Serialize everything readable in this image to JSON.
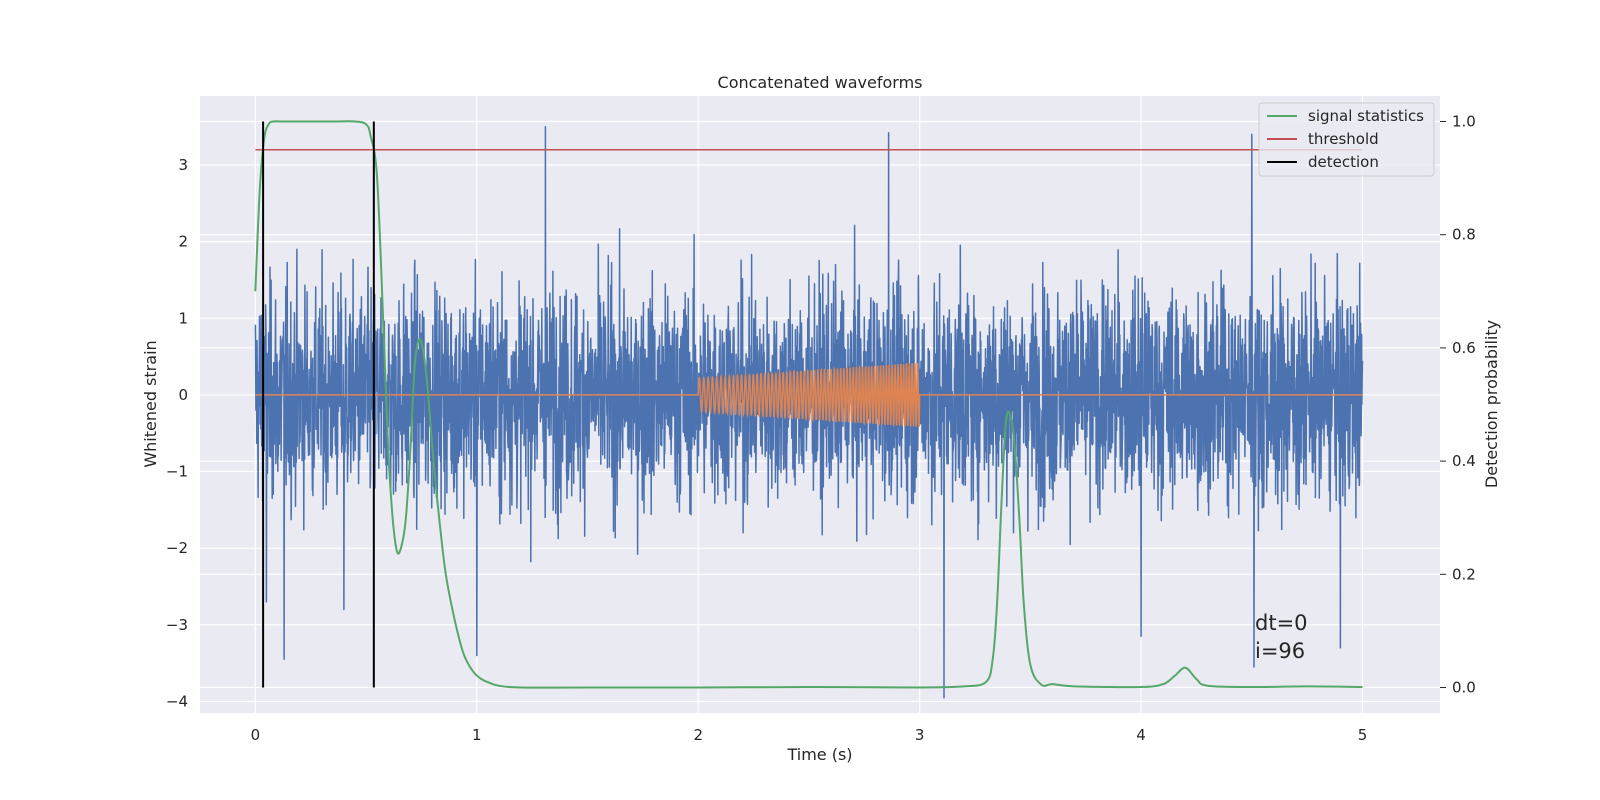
{
  "chart_data": {
    "type": "line",
    "title": "Concatenated waveforms",
    "xlabel": "Time (s)",
    "ylabel": "Whitened strain",
    "y2label": "Detection probability",
    "xlim": [
      -0.25,
      5.35
    ],
    "ylim": [
      -4.15,
      3.9
    ],
    "y2lim": [
      -0.045,
      1.045
    ],
    "xticks": [
      0,
      1,
      2,
      3,
      4,
      5
    ],
    "xtick_labels": [
      "0",
      "1",
      "2",
      "3",
      "4",
      "5"
    ],
    "yticks": [
      -4,
      -3,
      -2,
      -1,
      0,
      1,
      2,
      3
    ],
    "ytick_labels": [
      "−4",
      "−3",
      "−2",
      "−1",
      "0",
      "1",
      "2",
      "3"
    ],
    "y2ticks": [
      0.0,
      0.2,
      0.4,
      0.6,
      0.8,
      1.0
    ],
    "y2tick_labels": [
      "0.0",
      "0.2",
      "0.4",
      "0.6",
      "0.8",
      "1.0"
    ],
    "grid": true,
    "legend_position": "top-right",
    "legend": [
      {
        "label": "signal statistics",
        "color": "#55a868"
      },
      {
        "label": "threshold",
        "color": "#c44e52"
      },
      {
        "label": "detection",
        "color": "#000000"
      }
    ],
    "annotations": [
      "dt=0",
      "i=96"
    ],
    "series": [
      {
        "kind": "whitened_strain_noise",
        "axis": "left",
        "color": "#4c72b0",
        "x_range": [
          0,
          5
        ],
        "spikes": [
          [
            0.05,
            -2.7
          ],
          [
            0.13,
            -3.45
          ],
          [
            0.4,
            -2.8
          ],
          [
            1.0,
            -3.4
          ],
          [
            1.31,
            3.5
          ],
          [
            2.86,
            3.42
          ],
          [
            3.11,
            -3.95
          ],
          [
            4.0,
            -3.15
          ],
          [
            4.5,
            3.4
          ],
          [
            4.51,
            -3.55
          ],
          [
            4.9,
            -3.3
          ]
        ]
      },
      {
        "kind": "injected_chirp",
        "axis": "left",
        "color": "#dd8452",
        "x_range": [
          0,
          5
        ],
        "chirp_x_range": [
          2.0,
          3.0
        ],
        "chirp_amplitude_range": [
          0.22,
          0.42
        ]
      },
      {
        "name": "signal statistics",
        "axis": "right",
        "color": "#55a868",
        "x": [
          0.0,
          0.02,
          0.04,
          0.06,
          0.08,
          0.12,
          0.2,
          0.35,
          0.45,
          0.5,
          0.52,
          0.55,
          0.58,
          0.6,
          0.62,
          0.64,
          0.66,
          0.68,
          0.7,
          0.72,
          0.74,
          0.76,
          0.78,
          0.8,
          0.83,
          0.86,
          0.9,
          0.94,
          0.98,
          1.02,
          1.06,
          1.1,
          1.2,
          1.5,
          2.0,
          2.5,
          3.0,
          3.2,
          3.3,
          3.33,
          3.35,
          3.37,
          3.39,
          3.41,
          3.43,
          3.45,
          3.47,
          3.5,
          3.55,
          3.6,
          3.7,
          4.0,
          4.1,
          4.15,
          4.2,
          4.25,
          4.3,
          4.5,
          4.75,
          5.0
        ],
        "y": [
          0.7,
          0.88,
          0.97,
          0.995,
          1.0,
          1.0,
          1.0,
          1.0,
          1.0,
          0.995,
          0.975,
          0.9,
          0.62,
          0.42,
          0.3,
          0.24,
          0.25,
          0.3,
          0.42,
          0.57,
          0.615,
          0.59,
          0.52,
          0.42,
          0.3,
          0.2,
          0.12,
          0.06,
          0.03,
          0.015,
          0.008,
          0.003,
          0.0,
          0.0,
          0.0,
          0.001,
          0.0,
          0.002,
          0.01,
          0.05,
          0.15,
          0.33,
          0.47,
          0.48,
          0.42,
          0.3,
          0.15,
          0.04,
          0.005,
          0.006,
          0.002,
          0.001,
          0.006,
          0.02,
          0.035,
          0.015,
          0.003,
          0.001,
          0.002,
          0.001
        ]
      },
      {
        "name": "threshold",
        "axis": "right",
        "color": "#c44e52",
        "x": [
          0.0,
          5.0
        ],
        "y": [
          0.95,
          0.95
        ]
      },
      {
        "name": "detection",
        "axis": "right",
        "color": "#000000",
        "vlines_x": [
          0.035,
          0.535
        ],
        "vlines_y": [
          0.0,
          1.0
        ]
      }
    ]
  }
}
